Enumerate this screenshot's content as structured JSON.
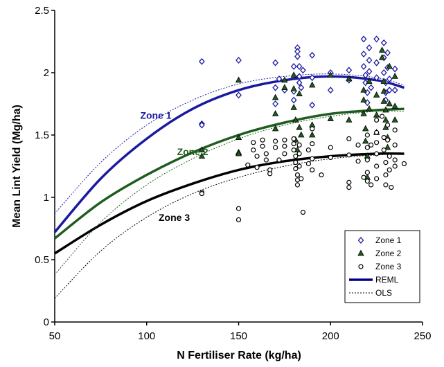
{
  "chart_data": {
    "type": "scatter",
    "title": "",
    "xlabel": "N Fertiliser Rate (kg/ha)",
    "ylabel": "Mean Lint Yield (Mg/ha)",
    "xlim": [
      50,
      250
    ],
    "ylim": [
      0,
      2.5
    ],
    "x_ticks": [
      "50",
      "100",
      "150",
      "200",
      "250"
    ],
    "y_ticks": [
      "0",
      "0.5",
      "1",
      "1.5",
      "2",
      "2.5"
    ],
    "grid": false,
    "legend_position": "bottom-right",
    "colors": {
      "zone1": "#1a1aa0",
      "zone2": "#1f5c1f",
      "zone3": "#000000"
    },
    "annotations": [
      {
        "text": "Zone 1",
        "series": "zone1",
        "x": 105,
        "y": 1.63
      },
      {
        "text": "Zone 2",
        "series": "zone2",
        "x": 125,
        "y": 1.34
      },
      {
        "text": "Zone 3",
        "series": "zone3",
        "x": 115,
        "y": 0.81
      }
    ],
    "legend": {
      "items": [
        {
          "label": "Zone 1",
          "kind": "diamond",
          "color": "#1a1aa0"
        },
        {
          "label": "Zone 2",
          "kind": "triangle",
          "color": "#1f5c1f"
        },
        {
          "label": "Zone 3",
          "kind": "circle",
          "color": "#000000"
        },
        {
          "label": "REML",
          "kind": "solid-line",
          "color": "#000080"
        },
        {
          "label": "OLS",
          "kind": "dotted-line",
          "color": "#000000"
        }
      ]
    },
    "curves": [
      {
        "series": "zone1",
        "method": "REML",
        "x": [
          50,
          75,
          100,
          125,
          150,
          175,
          200,
          225,
          240
        ],
        "y": [
          0.72,
          1.15,
          1.47,
          1.71,
          1.86,
          1.94,
          1.97,
          1.94,
          1.88
        ]
      },
      {
        "series": "zone2",
        "method": "REML",
        "x": [
          50,
          75,
          100,
          125,
          150,
          175,
          200,
          225,
          240
        ],
        "y": [
          0.67,
          0.96,
          1.18,
          1.36,
          1.5,
          1.6,
          1.67,
          1.7,
          1.71
        ]
      },
      {
        "series": "zone3",
        "method": "REML",
        "x": [
          50,
          75,
          100,
          125,
          150,
          175,
          200,
          225,
          240
        ],
        "y": [
          0.55,
          0.78,
          0.97,
          1.11,
          1.22,
          1.29,
          1.33,
          1.35,
          1.35
        ]
      },
      {
        "series": "zone1",
        "method": "OLS",
        "x": [
          50,
          75,
          100,
          125,
          150,
          175,
          200,
          225,
          240
        ],
        "y": [
          0.87,
          1.28,
          1.58,
          1.78,
          1.91,
          1.97,
          1.99,
          1.96,
          1.9
        ]
      },
      {
        "series": "zone2",
        "method": "OLS",
        "x": [
          50,
          75,
          100,
          125,
          150,
          175,
          200,
          225,
          240
        ],
        "y": [
          0.38,
          0.8,
          1.1,
          1.31,
          1.47,
          1.58,
          1.65,
          1.69,
          1.69
        ]
      },
      {
        "series": "zone3",
        "method": "OLS",
        "x": [
          50,
          75,
          100,
          125,
          150,
          175,
          200,
          225,
          240
        ],
        "y": [
          0.19,
          0.57,
          0.84,
          1.03,
          1.16,
          1.25,
          1.31,
          1.34,
          1.35
        ]
      }
    ],
    "series": [
      {
        "name": "Zone 1",
        "points": [
          [
            130,
            2.09
          ],
          [
            130,
            1.59
          ],
          [
            130,
            1.58
          ],
          [
            150,
            2.1
          ],
          [
            150,
            1.82
          ],
          [
            170,
            2.08
          ],
          [
            170,
            1.88
          ],
          [
            170,
            1.75
          ],
          [
            172,
            1.95
          ],
          [
            175,
            1.86
          ],
          [
            180,
            2.05
          ],
          [
            180,
            1.85
          ],
          [
            180,
            1.78
          ],
          [
            182,
            2.2
          ],
          [
            182,
            2.17
          ],
          [
            182,
            2.13
          ],
          [
            183,
            2.05
          ],
          [
            183,
            1.97
          ],
          [
            183,
            1.92
          ],
          [
            184,
            1.88
          ],
          [
            185,
            2.02
          ],
          [
            190,
            2.14
          ],
          [
            190,
            1.96
          ],
          [
            190,
            1.74
          ],
          [
            200,
            2.0
          ],
          [
            200,
            1.86
          ],
          [
            210,
            2.02
          ],
          [
            210,
            1.94
          ],
          [
            218,
            2.27
          ],
          [
            218,
            2.15
          ],
          [
            218,
            2.05
          ],
          [
            219,
            1.98
          ],
          [
            219,
            1.92
          ],
          [
            220,
            1.84
          ],
          [
            220,
            1.76
          ],
          [
            221,
            2.2
          ],
          [
            221,
            2.1
          ],
          [
            221,
            2.01
          ],
          [
            222,
            1.88
          ],
          [
            225,
            2.27
          ],
          [
            225,
            2.08
          ],
          [
            225,
            1.96
          ],
          [
            229,
            2.24
          ],
          [
            229,
            2.12
          ],
          [
            229,
            2.0
          ],
          [
            230,
            1.92
          ],
          [
            230,
            1.84
          ],
          [
            230,
            1.78
          ],
          [
            231,
            2.16
          ],
          [
            231,
            2.04
          ],
          [
            232,
            1.95
          ],
          [
            232,
            1.86
          ],
          [
            235,
            2.03
          ],
          [
            235,
            1.86
          ]
        ]
      },
      {
        "name": "Zone 2",
        "points": [
          [
            130,
            1.38
          ],
          [
            130,
            1.33
          ],
          [
            150,
            1.94
          ],
          [
            150,
            1.48
          ],
          [
            150,
            1.36
          ],
          [
            150,
            1.35
          ],
          [
            170,
            1.8
          ],
          [
            170,
            1.67
          ],
          [
            170,
            1.55
          ],
          [
            175,
            1.94
          ],
          [
            175,
            1.88
          ],
          [
            180,
            1.98
          ],
          [
            180,
            1.87
          ],
          [
            180,
            1.72
          ],
          [
            181,
            1.62
          ],
          [
            181,
            1.46
          ],
          [
            182,
            1.38
          ],
          [
            183,
            1.83
          ],
          [
            183,
            1.56
          ],
          [
            184,
            1.5
          ],
          [
            190,
            1.9
          ],
          [
            190,
            1.58
          ],
          [
            190,
            1.5
          ],
          [
            200,
            1.98
          ],
          [
            200,
            1.63
          ],
          [
            210,
            1.95
          ],
          [
            210,
            1.62
          ],
          [
            218,
            1.86
          ],
          [
            218,
            1.78
          ],
          [
            218,
            1.67
          ],
          [
            219,
            1.55
          ],
          [
            219,
            1.45
          ],
          [
            220,
            1.33
          ],
          [
            220,
            1.16
          ],
          [
            221,
            1.93
          ],
          [
            221,
            1.71
          ],
          [
            225,
            1.82
          ],
          [
            225,
            1.66
          ],
          [
            225,
            1.52
          ],
          [
            228,
            2.18
          ],
          [
            228,
            2.12
          ],
          [
            229,
            1.93
          ],
          [
            229,
            1.85
          ],
          [
            229,
            1.77
          ],
          [
            230,
            1.7
          ],
          [
            230,
            1.62
          ],
          [
            230,
            1.56
          ],
          [
            231,
            1.48
          ],
          [
            231,
            1.4
          ],
          [
            232,
            2.05
          ],
          [
            232,
            1.75
          ],
          [
            235,
            1.97
          ],
          [
            235,
            1.73
          ],
          [
            235,
            1.62
          ]
        ]
      },
      {
        "name": "Zone 3",
        "points": [
          [
            130,
            1.04
          ],
          [
            130,
            1.03
          ],
          [
            150,
            0.91
          ],
          [
            150,
            0.82
          ],
          [
            155,
            1.26
          ],
          [
            158,
            1.44
          ],
          [
            158,
            1.38
          ],
          [
            160,
            1.33
          ],
          [
            160,
            1.24
          ],
          [
            163,
            1.46
          ],
          [
            163,
            1.41
          ],
          [
            165,
            1.35
          ],
          [
            165,
            1.3
          ],
          [
            167,
            1.22
          ],
          [
            167,
            1.19
          ],
          [
            170,
            1.45
          ],
          [
            170,
            1.4
          ],
          [
            172,
            1.3
          ],
          [
            175,
            1.46
          ],
          [
            175,
            1.41
          ],
          [
            175,
            1.35
          ],
          [
            180,
            1.47
          ],
          [
            180,
            1.43
          ],
          [
            180,
            1.38
          ],
          [
            181,
            1.33
          ],
          [
            181,
            1.28
          ],
          [
            181,
            1.23
          ],
          [
            182,
            1.18
          ],
          [
            182,
            1.14
          ],
          [
            182,
            1.1
          ],
          [
            183,
            1.42
          ],
          [
            183,
            1.35
          ],
          [
            183,
            1.25
          ],
          [
            184,
            1.15
          ],
          [
            185,
            0.88
          ],
          [
            188,
            1.38
          ],
          [
            188,
            1.27
          ],
          [
            190,
            1.55
          ],
          [
            190,
            1.43
          ],
          [
            190,
            1.31
          ],
          [
            190,
            1.22
          ],
          [
            195,
            1.18
          ],
          [
            200,
            1.4
          ],
          [
            200,
            1.32
          ],
          [
            210,
            1.47
          ],
          [
            210,
            1.34
          ],
          [
            210,
            1.12
          ],
          [
            210,
            1.08
          ],
          [
            215,
            1.42
          ],
          [
            215,
            1.29
          ],
          [
            218,
            1.16
          ],
          [
            220,
            1.5
          ],
          [
            220,
            1.4
          ],
          [
            220,
            1.3
          ],
          [
            220,
            1.2
          ],
          [
            220,
            1.13
          ],
          [
            222,
            1.42
          ],
          [
            222,
            1.1
          ],
          [
            225,
            1.62
          ],
          [
            225,
            1.52
          ],
          [
            225,
            1.44
          ],
          [
            225,
            1.35
          ],
          [
            225,
            1.25
          ],
          [
            225,
            1.15
          ],
          [
            228,
            1.65
          ],
          [
            229,
            1.48
          ],
          [
            229,
            1.38
          ],
          [
            230,
            1.28
          ],
          [
            230,
            1.18
          ],
          [
            230,
            1.1
          ],
          [
            231,
            1.58
          ],
          [
            231,
            1.46
          ],
          [
            232,
            1.33
          ],
          [
            232,
            1.22
          ],
          [
            233,
            1.08
          ],
          [
            235,
            1.54
          ],
          [
            235,
            1.42
          ],
          [
            235,
            1.3
          ],
          [
            235,
            1.25
          ],
          [
            240,
            1.27
          ]
        ]
      }
    ]
  }
}
